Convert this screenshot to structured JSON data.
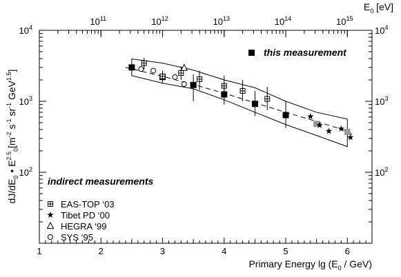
{
  "chart_data": {
    "type": "scatter",
    "xlabel": "Primary Energy lg (E",
    "xlabel_sub": "0",
    "xlabel_tail": " / GeV)",
    "ylabel_main": "dJ/dE",
    "ylabel_rest": "[m",
    "ylabel_units": " s",
    "ylabel_sr": " sr",
    "ylabel_gev": " GeV",
    "xlim": [
      1,
      6.4
    ],
    "ylim_log10": [
      1,
      4
    ],
    "x_ticks": [
      "1",
      "2",
      "3",
      "4",
      "5",
      "6"
    ],
    "y_ticks_left": [
      {
        "base": "10",
        "exp": "2",
        "value": 100
      },
      {
        "base": "10",
        "exp": "3",
        "value": 1000
      },
      {
        "base": "10",
        "exp": "4",
        "value": 10000
      }
    ],
    "y_ticks_right": [
      {
        "base": "10",
        "exp": "2",
        "value": 100
      },
      {
        "base": "10",
        "exp": "3",
        "value": 1000
      },
      {
        "base": "10",
        "exp": "4",
        "value": 10000
      }
    ],
    "top_axis_label": "E",
    "top_axis_sub": "0",
    "top_axis_unit": " [eV]",
    "top_ticks": [
      {
        "base": "10",
        "exp": "11",
        "lgE_GeV": 2
      },
      {
        "base": "10",
        "exp": "12",
        "lgE_GeV": 3
      },
      {
        "base": "10",
        "exp": "13",
        "lgE_GeV": 4
      },
      {
        "base": "10",
        "exp": "14",
        "lgE_GeV": 5
      },
      {
        "base": "10",
        "exp": "15",
        "lgE_GeV": 6
      }
    ],
    "legend_this": "this measurement",
    "legend_indirect_title": "indirect measurements",
    "legend_indirect": [
      {
        "label": "EAS-TOP ‘03",
        "marker": "square-cross"
      },
      {
        "label": "Tibet PD ‘00",
        "marker": "star"
      },
      {
        "label": "HEGRA ‘99",
        "marker": "triangle"
      },
      {
        "label": "SYS ‘95",
        "marker": "circle"
      }
    ],
    "series": [
      {
        "name": "this measurement",
        "marker": "filled-square",
        "color": "#000000",
        "points": [
          [
            2.5,
            3000
          ],
          [
            3.0,
            2200
          ],
          [
            3.5,
            1700
          ],
          [
            4.0,
            1250
          ],
          [
            4.5,
            920
          ],
          [
            5.0,
            640
          ]
        ]
      },
      {
        "name": "this measurement (gray)",
        "marker": "filled-square",
        "color": "#999999",
        "points": [
          [
            5.5,
            480
          ],
          [
            6.0,
            370
          ]
        ]
      },
      {
        "name": "EAS-TOP ‘03",
        "marker": "square-cross",
        "points": [
          [
            2.7,
            3450,
            2800,
            4100
          ],
          [
            3.0,
            2250,
            1800,
            2700
          ],
          [
            3.3,
            2500,
            2000,
            3100
          ],
          [
            3.6,
            2050,
            1450,
            2700
          ],
          [
            4.0,
            1650,
            1100,
            2300
          ],
          [
            4.3,
            1400,
            1000,
            2000
          ],
          [
            4.7,
            1080,
            750,
            1600
          ]
        ]
      },
      {
        "name": "Tibet PD ‘00",
        "marker": "star",
        "points": [
          [
            5.4,
            610
          ],
          [
            5.55,
            460
          ],
          [
            5.7,
            380
          ],
          [
            5.9,
            410
          ],
          [
            6.05,
            310
          ]
        ]
      },
      {
        "name": "HEGRA ‘99",
        "marker": "triangle",
        "points": [
          [
            3.35,
            2950
          ]
        ]
      },
      {
        "name": "SYS ‘95",
        "marker": "circle",
        "points": [
          [
            2.65,
            2850
          ],
          [
            2.85,
            2700
          ],
          [
            3.2,
            2200
          ],
          [
            3.35,
            1750
          ]
        ]
      }
    ],
    "errors_this": [
      [
        2.5,
        2700,
        3300
      ],
      [
        3.0,
        1950,
        2500
      ],
      [
        3.5,
        1000,
        2400
      ],
      [
        4.0,
        900,
        1750
      ],
      [
        4.5,
        620,
        1400
      ],
      [
        5.0,
        420,
        1000
      ]
    ],
    "band_upper": [
      [
        2.5,
        3950
      ],
      [
        3.0,
        3450
      ],
      [
        3.5,
        2750
      ],
      [
        4.0,
        2000
      ],
      [
        4.5,
        1550
      ],
      [
        5.0,
        1000
      ],
      [
        5.5,
        700
      ],
      [
        6.0,
        560
      ]
    ],
    "band_lower": [
      [
        2.5,
        2300
      ],
      [
        3.0,
        1800
      ],
      [
        3.5,
        1500
      ],
      [
        4.0,
        1050
      ],
      [
        4.5,
        700
      ],
      [
        5.0,
        470
      ],
      [
        5.5,
        330
      ],
      [
        6.0,
        230
      ]
    ],
    "fit_line": [
      [
        2.4,
        3000
      ],
      [
        3.0,
        2250
      ],
      [
        3.5,
        1720
      ],
      [
        4.0,
        1300
      ],
      [
        4.5,
        950
      ],
      [
        5.0,
        700
      ],
      [
        5.5,
        520
      ],
      [
        6.0,
        380
      ],
      [
        6.1,
        330
      ]
    ]
  }
}
